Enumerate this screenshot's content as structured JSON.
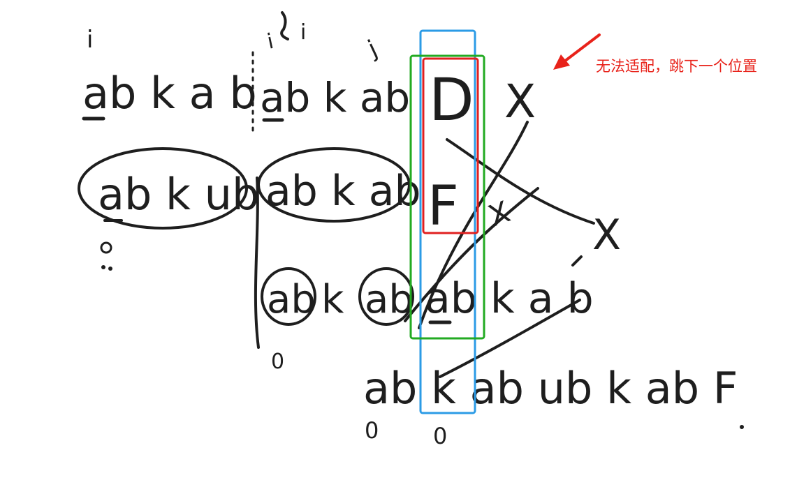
{
  "annotation": {
    "text": "无法适配，跳下一个位置",
    "color": "#e8221a"
  },
  "strings": {
    "row1_a": "ab k a b",
    "row1_b": "ab k ab",
    "row1_d": "D",
    "row2_a": "ab k ub",
    "row2_b": "ab k ab",
    "row2_f": "F",
    "row3_a": "ab",
    "row3_k": "k",
    "row3_c": "ab",
    "row3_d": "ab k a b",
    "row4": "ab k ab ub k ab F",
    "zero": "0"
  },
  "marks": {
    "index_i": "i",
    "index_j": "j",
    "cross": "X"
  },
  "highlight_colors": {
    "blue_box": "#2b9be6",
    "green_box": "#22aa22",
    "red_box": "#e02020",
    "ink": "#1e1e1e"
  }
}
